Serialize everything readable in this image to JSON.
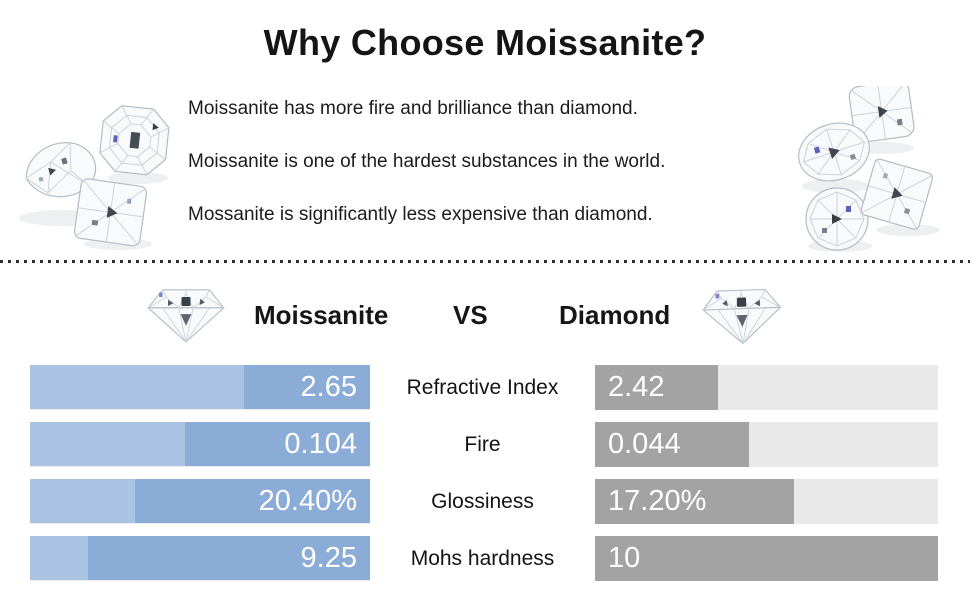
{
  "page": {
    "title": "Why Choose Moissanite?",
    "bullets": [
      "Moissanite has more fire and brilliance than diamond.",
      "Moissanite is one of the hardest substances in the world.",
      "Mossanite is significantly less expensive than diamond."
    ]
  },
  "comparison_header": {
    "left_label": "Moissanite",
    "vs_label": "VS",
    "right_label": "Diamond"
  },
  "icons": {
    "header_left": "round-brilliant-gem-icon",
    "header_right": "round-brilliant-gem-icon",
    "top_left": "gem-cluster-photo",
    "top_right": "gem-cluster-photo"
  },
  "colors": {
    "moissanite_bar_light": "#abc3e3",
    "moissanite_bar_dark": "#8cacd8",
    "diamond_bar_fill": "#a3a3a3",
    "diamond_bar_track": "#e9e9e9",
    "value_text": "#ffffff",
    "text": "#111111"
  },
  "chart_data": {
    "type": "bar",
    "orientation": "horizontal-mirrored",
    "title": "Moissanite VS Diamond",
    "categories": [
      "Refractive Index",
      "Fire",
      "Glossiness",
      "Mohs hardness"
    ],
    "series": [
      {
        "name": "Moissanite",
        "values": [
          2.65,
          0.104,
          20.4,
          9.25
        ],
        "value_labels": [
          "2.65",
          "0.104",
          "20.40%",
          "9.25"
        ],
        "fill_pct": [
          37,
          54.5,
          69,
          83
        ]
      },
      {
        "name": "Diamond",
        "values": [
          2.42,
          0.044,
          17.2,
          10
        ],
        "value_labels": [
          "2.42",
          "0.044",
          "17.20%",
          "10"
        ],
        "fill_pct": [
          36,
          45,
          58,
          100
        ]
      }
    ],
    "legend_position": "none",
    "grid": false
  }
}
